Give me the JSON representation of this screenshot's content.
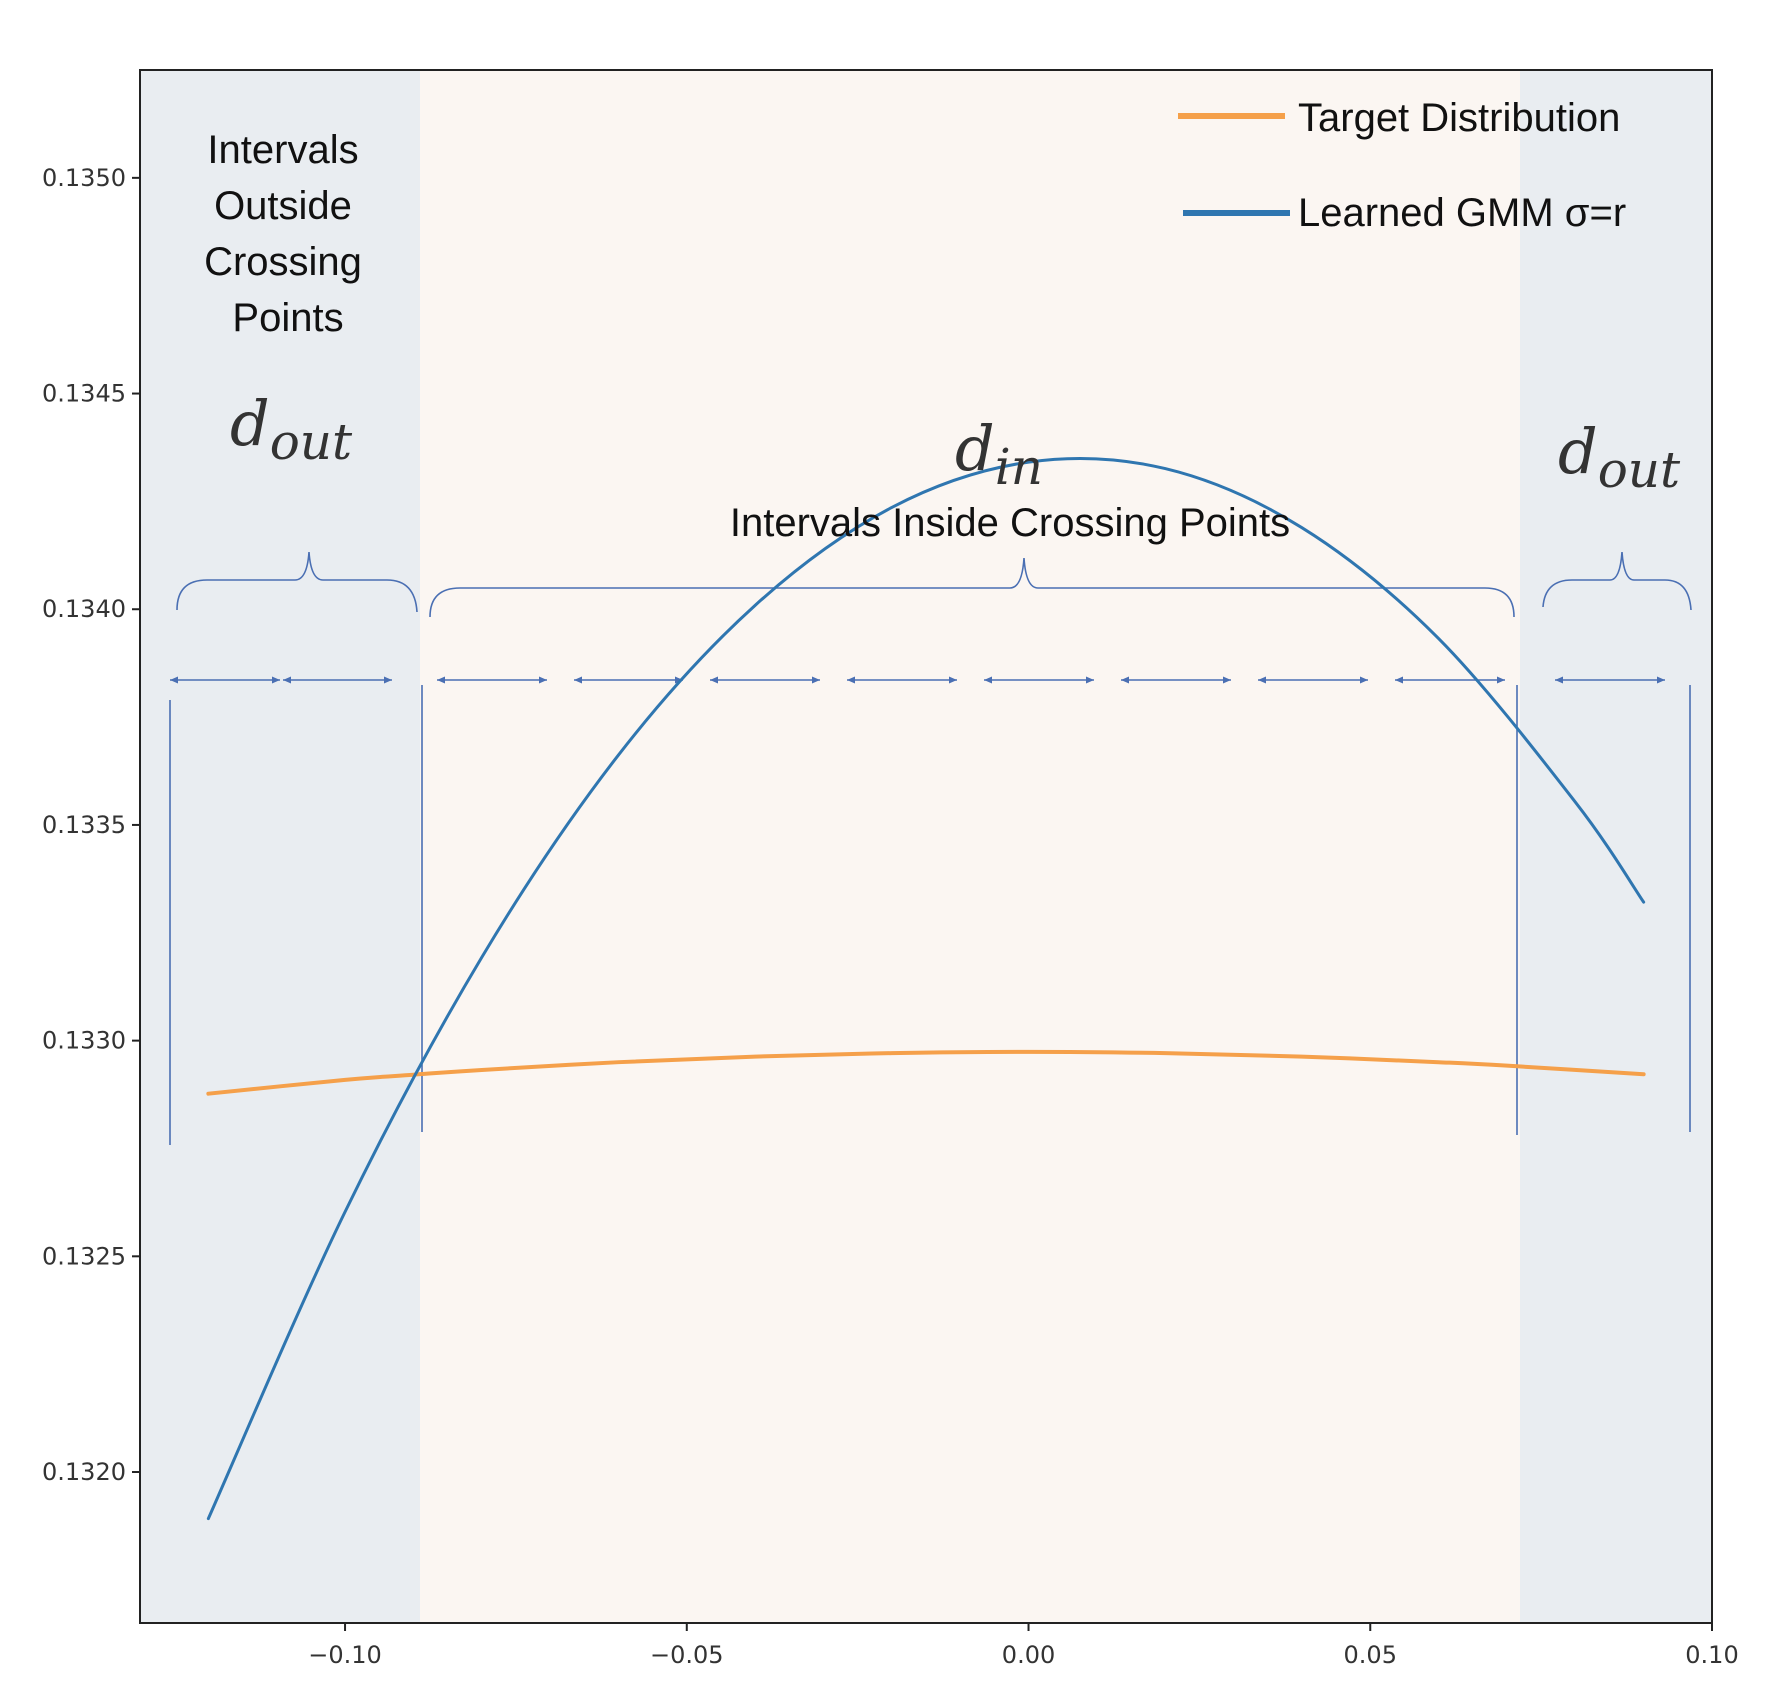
{
  "chart_data": {
    "type": "line",
    "title": "",
    "xlabel": "",
    "ylabel": "",
    "xlim": [
      -0.13,
      0.1
    ],
    "ylim": [
      0.13165,
      0.13525
    ],
    "x_ticks": [
      -0.1,
      -0.05,
      0.0,
      0.05,
      0.1
    ],
    "x_tick_labels": [
      "−0.10",
      "−0.05",
      "0.00",
      "0.05",
      "0.10"
    ],
    "y_ticks": [
      0.132,
      0.1325,
      0.133,
      0.1335,
      0.134,
      0.1345,
      0.135
    ],
    "y_tick_labels": [
      "0.1320",
      "0.1325",
      "0.1330",
      "0.1335",
      "0.1340",
      "0.1345",
      "0.1350"
    ],
    "legend_position": "top-right",
    "series": [
      {
        "name": "Target Distribution",
        "color": "#f5a04a",
        "x": [
          -0.12,
          -0.1,
          -0.09,
          -0.08,
          -0.06,
          -0.04,
          -0.02,
          0.0,
          0.02,
          0.04,
          0.06,
          0.07,
          0.09
        ],
        "y": [
          0.132877,
          0.132909,
          0.132921,
          0.132932,
          0.13295,
          0.132963,
          0.132971,
          0.132974,
          0.132971,
          0.132963,
          0.13295,
          0.132942,
          0.132922
        ]
      },
      {
        "name": "Learned GMM σ=r",
        "color": "#2f76b0",
        "x": [
          -0.12,
          -0.1,
          -0.08,
          -0.06,
          -0.04,
          -0.02,
          0.0,
          0.02,
          0.04,
          0.06,
          0.08,
          0.09
        ],
        "y": [
          0.131892,
          0.132603,
          0.133193,
          0.133662,
          0.134009,
          0.134236,
          0.134341,
          0.134326,
          0.134189,
          0.133932,
          0.133553,
          0.133321
        ]
      }
    ],
    "shaded_regions": [
      {
        "x_start": -0.13,
        "x_end": -0.0887,
        "color": "#e8ecf0",
        "label": "outside"
      },
      {
        "x_start": -0.0887,
        "x_end": 0.0725,
        "color": "#fbf6f2",
        "label": "inside"
      },
      {
        "x_start": 0.0725,
        "x_end": 0.1,
        "color": "#e8ecf0",
        "label": "outside"
      }
    ],
    "crossing_points": [
      -0.0887,
      0.0725
    ],
    "annotations": {
      "outside_label_lines": [
        "Intervals",
        "Outside",
        "Crossing",
        "Points"
      ],
      "d_out_base": "d",
      "d_out_sub": "out",
      "d_in_base": "d",
      "d_in_sub": "in",
      "inside_label": "Intervals Inside Crossing Points"
    }
  }
}
